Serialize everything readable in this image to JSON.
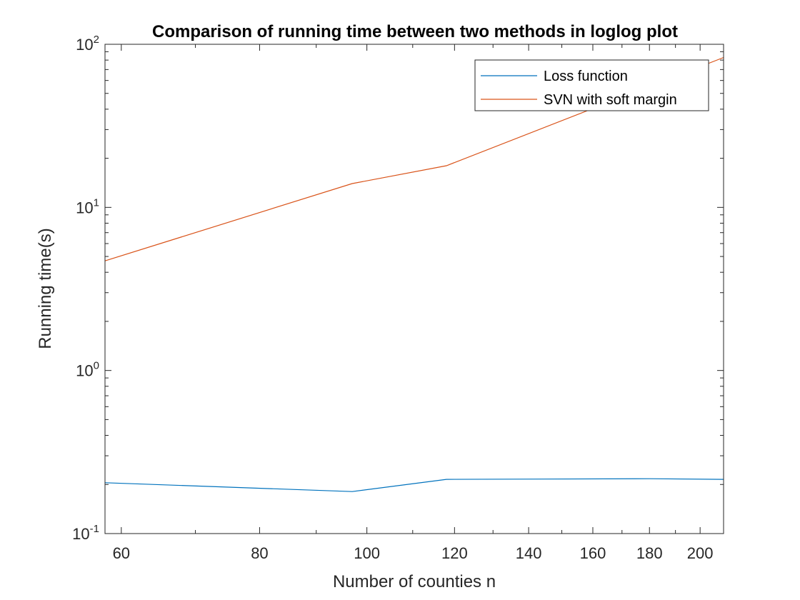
{
  "chart_data": {
    "type": "line",
    "title": "Comparison of running time between two methods in loglog plot",
    "xlabel": "Number of counties n",
    "ylabel": "Running time(s)",
    "xscale": "log",
    "yscale": "log",
    "xlim": [
      58,
      210
    ],
    "ylim": [
      0.1,
      100
    ],
    "xticks": [
      60,
      80,
      100,
      120,
      140,
      160,
      180,
      200
    ],
    "xticklabels": [
      "60",
      "80",
      "100",
      "120",
      "140",
      "160",
      "180",
      "200"
    ],
    "yticks": [
      {
        "value": 0.1,
        "base": "10",
        "exp": "-1"
      },
      {
        "value": 1,
        "base": "10",
        "exp": "0"
      },
      {
        "value": 10,
        "base": "10",
        "exp": "1"
      },
      {
        "value": 100,
        "base": "10",
        "exp": "2"
      }
    ],
    "grid": false,
    "legend_position": "top-right",
    "series": [
      {
        "name": "Loss function",
        "color": "#0072BD",
        "points": [
          [
            58,
            0.205
          ],
          [
            97,
            0.181
          ],
          [
            118,
            0.215
          ],
          [
            180,
            0.217
          ],
          [
            210,
            0.215
          ]
        ]
      },
      {
        "name": "SVN with soft margin",
        "color": "#D95319",
        "points": [
          [
            58,
            4.7
          ],
          [
            97,
            14.0
          ],
          [
            118,
            18.0
          ],
          [
            210,
            83.0
          ]
        ]
      }
    ]
  }
}
